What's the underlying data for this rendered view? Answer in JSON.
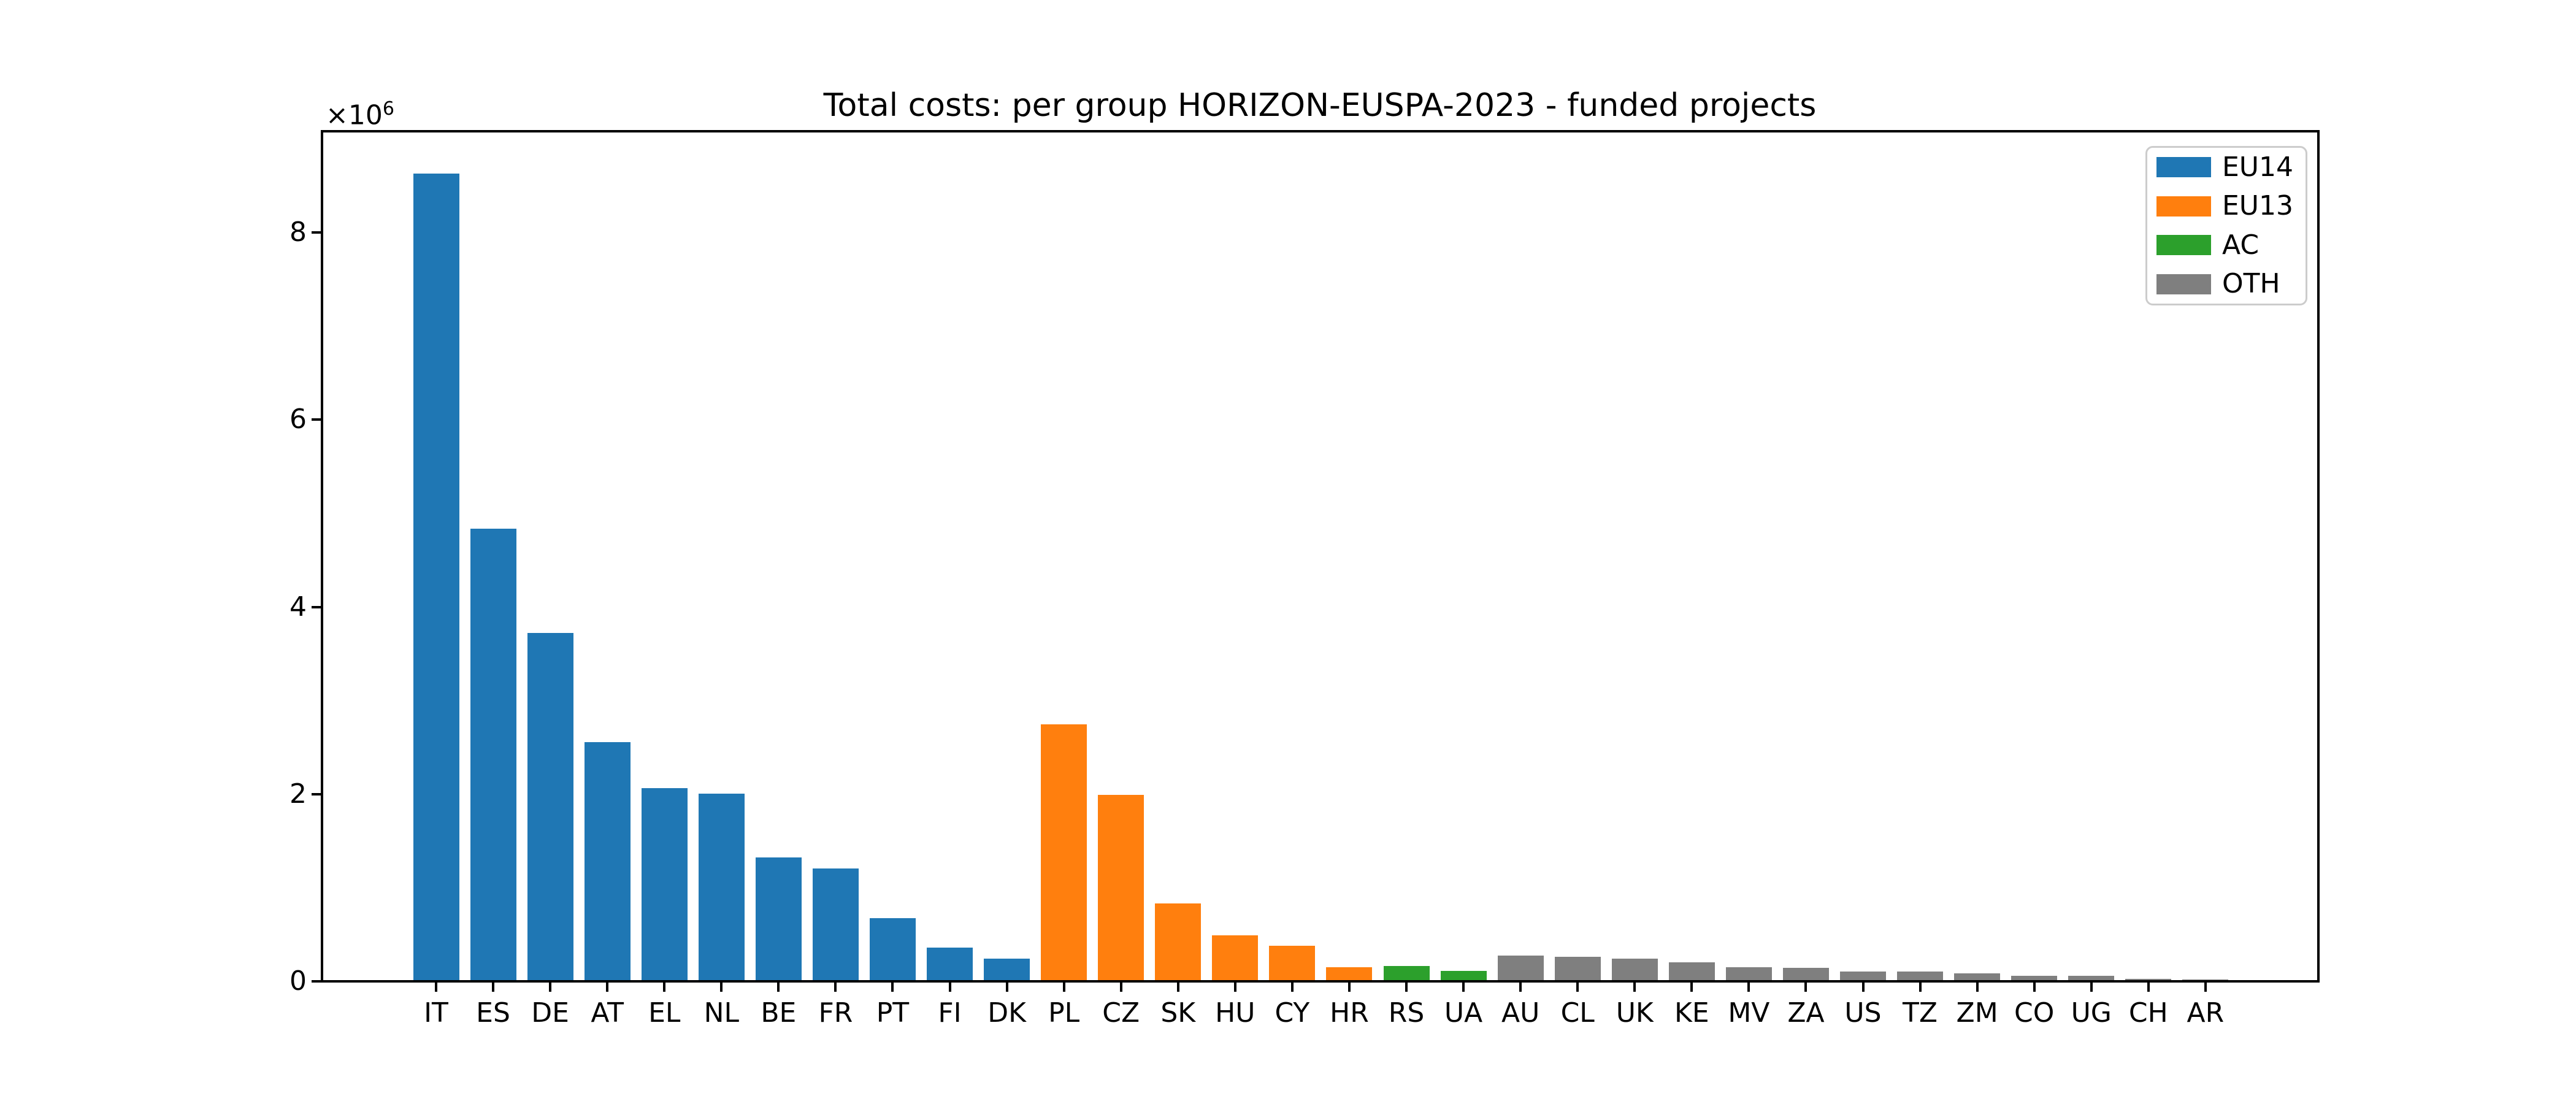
{
  "chart_data": {
    "type": "bar",
    "title": "Total costs: per group HORIZON-EUSPA-2023 - funded projects",
    "xlabel": "",
    "ylabel": "",
    "categories": [
      "IT",
      "ES",
      "DE",
      "AT",
      "EL",
      "NL",
      "BE",
      "FR",
      "PT",
      "FI",
      "DK",
      "PL",
      "CZ",
      "SK",
      "HU",
      "CY",
      "HR",
      "RS",
      "UA",
      "AU",
      "CL",
      "UK",
      "KE",
      "MV",
      "ZA",
      "US",
      "TZ",
      "ZM",
      "CO",
      "UG",
      "CH",
      "AR"
    ],
    "values": [
      8620000,
      4820000,
      3710000,
      2540000,
      2050000,
      1990000,
      1310000,
      1190000,
      660000,
      350000,
      230000,
      2730000,
      1980000,
      820000,
      480000,
      370000,
      140000,
      150000,
      100000,
      260000,
      250000,
      230000,
      190000,
      140000,
      130000,
      90000,
      90000,
      70000,
      45000,
      45000,
      12000,
      6000
    ],
    "bar_groups": [
      "EU14",
      "EU14",
      "EU14",
      "EU14",
      "EU14",
      "EU14",
      "EU14",
      "EU14",
      "EU14",
      "EU14",
      "EU14",
      "EU13",
      "EU13",
      "EU13",
      "EU13",
      "EU13",
      "EU13",
      "AC",
      "AC",
      "OTH",
      "OTH",
      "OTH",
      "OTH",
      "OTH",
      "OTH",
      "OTH",
      "OTH",
      "OTH",
      "OTH",
      "OTH",
      "OTH",
      "OTH"
    ],
    "group_colors": {
      "EU14": "#1f77b4",
      "EU13": "#ff7f0e",
      "AC": "#2ca02c",
      "OTH": "#7f7f7f"
    },
    "ylim": [
      0,
      9080000
    ],
    "grid": false,
    "y_axis": {
      "tick_values": [
        0,
        2000000,
        4000000,
        6000000,
        8000000
      ],
      "tick_labels": [
        "0",
        "2",
        "4",
        "6",
        "8"
      ],
      "offset_text": "×10⁶",
      "offset_base": "×10",
      "offset_exponent": "6"
    },
    "legend": {
      "position": "upper right",
      "entries": [
        {
          "label": "EU14",
          "color": "#1f77b4"
        },
        {
          "label": "EU13",
          "color": "#ff7f0e"
        },
        {
          "label": "AC",
          "color": "#2ca02c"
        },
        {
          "label": "OTH",
          "color": "#7f7f7f"
        }
      ]
    }
  }
}
